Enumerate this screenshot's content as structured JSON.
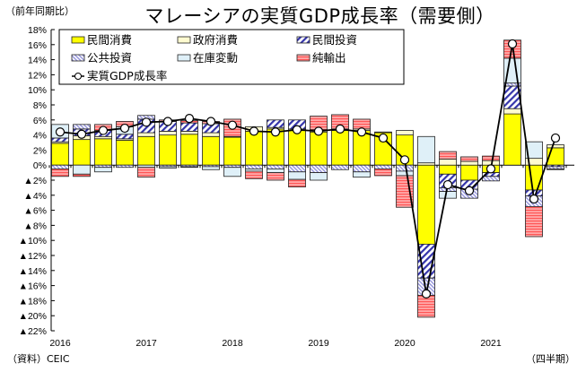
{
  "chart_data": {
    "type": "bar",
    "subtype": "stacked-bar-with-line",
    "title": "マレーシアの実質GDP成長率（需要側）",
    "ylabel": "（前年同期比）",
    "xlabel": "（四半期）",
    "source": "（資料）CEIC",
    "ylim": [
      -22,
      18
    ],
    "ytick_step": 2,
    "ytick_labels": [
      "18%",
      "16%",
      "14%",
      "12%",
      "10%",
      "8%",
      "6%",
      "4%",
      "2%",
      "0%",
      "▲2%",
      "▲4%",
      "▲6%",
      "▲8%",
      "▲10%",
      "▲12%",
      "▲14%",
      "▲16%",
      "▲18%",
      "▲20%",
      "▲22%"
    ],
    "year_labels": [
      "2016",
      "2017",
      "2018",
      "2019",
      "2020",
      "2021"
    ],
    "categories": [
      "2016Q1",
      "2016Q2",
      "2016Q3",
      "2016Q4",
      "2017Q1",
      "2017Q2",
      "2017Q3",
      "2017Q4",
      "2018Q1",
      "2018Q2",
      "2018Q3",
      "2018Q4",
      "2019Q1",
      "2019Q2",
      "2019Q3",
      "2019Q4",
      "2020Q1",
      "2020Q2",
      "2020Q3",
      "2020Q4",
      "2021Q1",
      "2021Q2",
      "2021Q3",
      "2021Q4"
    ],
    "legend_position": "top",
    "series": [
      {
        "name": "民間消費",
        "key": "private_consumption",
        "color": "#ffff00",
        "pattern": "solid",
        "values": [
          2.9,
          3.4,
          3.5,
          3.3,
          3.8,
          4.0,
          4.1,
          3.8,
          3.7,
          4.5,
          4.8,
          4.6,
          4.4,
          4.6,
          4.6,
          4.3,
          4.0,
          -10.5,
          -1.2,
          -2.0,
          -1.0,
          6.8,
          -3.3,
          2.3
        ]
      },
      {
        "name": "政府消費",
        "key": "government_consumption",
        "color": "#fffbd0",
        "pattern": "solid",
        "values": [
          0.2,
          0.5,
          0.3,
          0.2,
          0.5,
          0.5,
          0.4,
          0.5,
          0.1,
          0.6,
          0.2,
          0.2,
          0.3,
          0.2,
          0.2,
          0.1,
          0.6,
          0.3,
          0.8,
          0.5,
          0.6,
          0.7,
          0.9,
          0.4
        ]
      },
      {
        "name": "民間投資",
        "key": "private_investment",
        "color": "#3333aa",
        "pattern": "diagonal",
        "values": [
          0.5,
          0.9,
          0.8,
          0.6,
          1.8,
          1.3,
          1.1,
          1.2,
          0.0,
          0.0,
          1.0,
          1.2,
          0.0,
          0.0,
          0.0,
          0.0,
          0.0,
          -4.5,
          -1.8,
          -1.2,
          -0.5,
          3.0,
          -0.8,
          -0.2
        ]
      },
      {
        "name": "公共投資",
        "key": "public_investment",
        "color": "#9999dd",
        "pattern": "dense-diagonal",
        "values": [
          -0.5,
          0.6,
          -0.3,
          -0.3,
          0.5,
          -0.2,
          -0.2,
          -0.2,
          -0.3,
          -0.5,
          -0.5,
          -0.9,
          -1.0,
          -0.6,
          -0.9,
          -0.5,
          -0.8,
          -2.3,
          -0.5,
          -1.2,
          -0.6,
          0.4,
          -1.4,
          -0.3
        ]
      },
      {
        "name": "在庫変動",
        "key": "inventory_change",
        "color": "#dff0f8",
        "pattern": "solid",
        "values": [
          1.8,
          -1.2,
          -0.6,
          1.0,
          -0.3,
          -0.2,
          -0.1,
          -0.4,
          -1.2,
          -0.3,
          -0.5,
          -1.0,
          -1.0,
          0.0,
          -0.7,
          0.0,
          -0.6,
          3.5,
          -0.9,
          0.0,
          0.0,
          3.3,
          2.2,
          -0.1
        ]
      },
      {
        "name": "純輸出",
        "key": "net_exports",
        "color": "#ff6666",
        "pattern": "horizontal",
        "values": [
          -1.0,
          -0.3,
          0.8,
          0.7,
          -1.3,
          0.2,
          0.3,
          0.3,
          2.3,
          -1.0,
          -1.0,
          -1.0,
          1.8,
          1.9,
          1.3,
          -0.9,
          -4.2,
          -2.9,
          1.0,
          0.6,
          0.6,
          2.4,
          -4.0,
          0.0
        ]
      },
      {
        "name": "実質GDP成長率",
        "key": "gdp_growth",
        "type": "line",
        "color": "#000000",
        "marker": "open-circle",
        "values": [
          4.4,
          4.1,
          4.6,
          4.9,
          5.7,
          5.8,
          6.2,
          5.8,
          5.3,
          4.5,
          4.4,
          4.7,
          4.5,
          4.8,
          4.4,
          3.6,
          0.7,
          -17.1,
          -2.6,
          -3.4,
          -0.5,
          16.1,
          -4.5,
          3.6
        ]
      }
    ]
  },
  "labels": {
    "unit": "（前年同期比）",
    "title": "マレーシアの実質GDP成長率（需要側）",
    "source": "（資料）CEIC",
    "period": "（四半期）"
  }
}
